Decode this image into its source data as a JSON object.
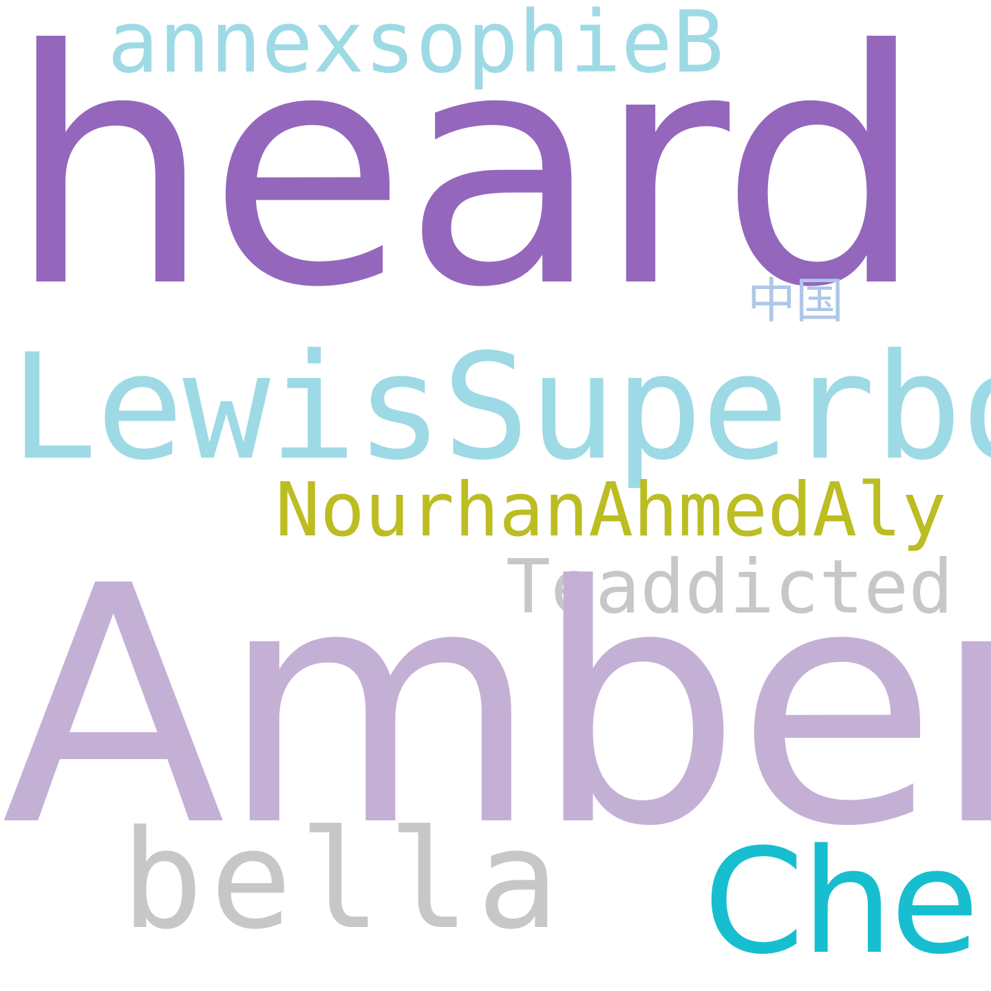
{
  "cloud": {
    "background": "#ffffff",
    "words": [
      {
        "text": "heard",
        "color": "#9467bd"
      },
      {
        "text": "annexsophieB",
        "color": "#9edae5"
      },
      {
        "text": "中国",
        "color": "#aec7e8"
      },
      {
        "text": "LewisSuperboy",
        "color": "#9edae5"
      },
      {
        "text": "NourhanAhmedAly",
        "color": "#bcbd22"
      },
      {
        "text": "Teaddicted",
        "color": "#c7c7c7"
      },
      {
        "text": "Amber",
        "color": "#c5b0d5"
      },
      {
        "text": "bella",
        "color": "#c7c7c7"
      },
      {
        "text": "Che",
        "color": "#17becf"
      }
    ]
  }
}
